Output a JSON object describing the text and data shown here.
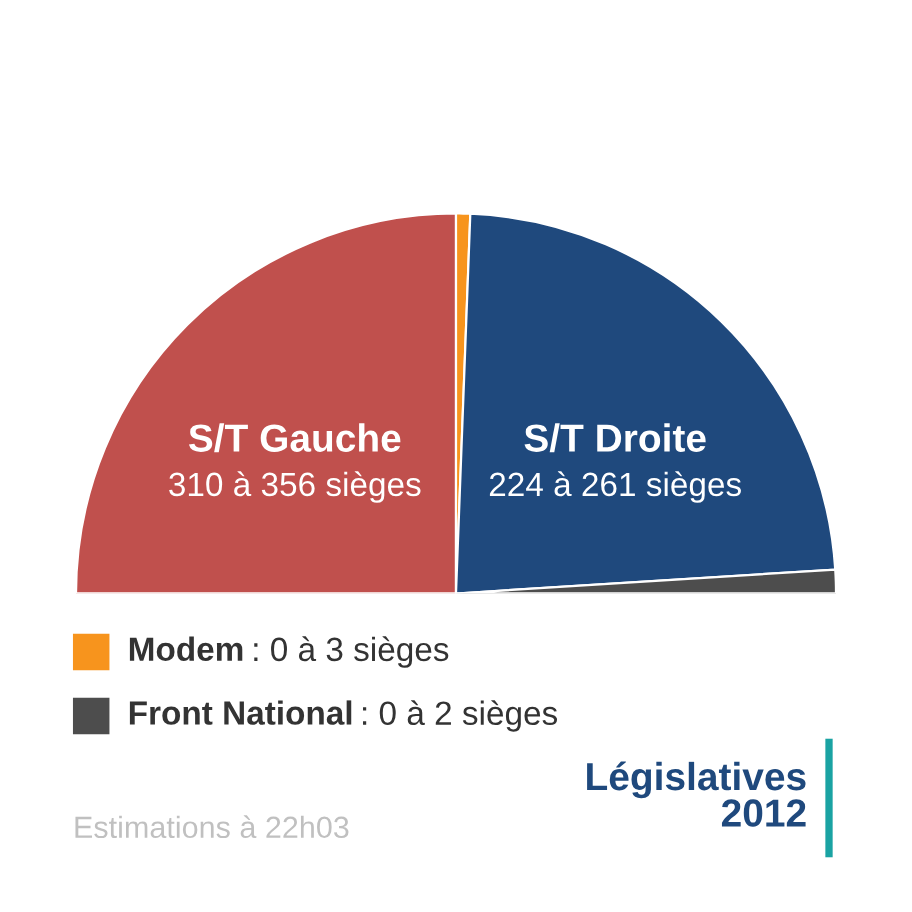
{
  "chart_data": {
    "type": "pie",
    "title": "Législatives\n2012",
    "categories": [
      "S/T Gauche",
      "Modem",
      "S/T Droite",
      "Front National"
    ],
    "values": [
      50,
      1.2,
      46.8,
      2
    ],
    "colors": [
      "#c0504d",
      "#f7941d",
      "#1f497d",
      "#4d4d4d"
    ],
    "legend": "bottom left",
    "annotations": [
      "310 à 356 sièges",
      ": 0 à 3 sièges",
      "224 à 261 sièges",
      ": 0 à 2 sièges",
      "Estimations à 22h03"
    ]
  }
}
